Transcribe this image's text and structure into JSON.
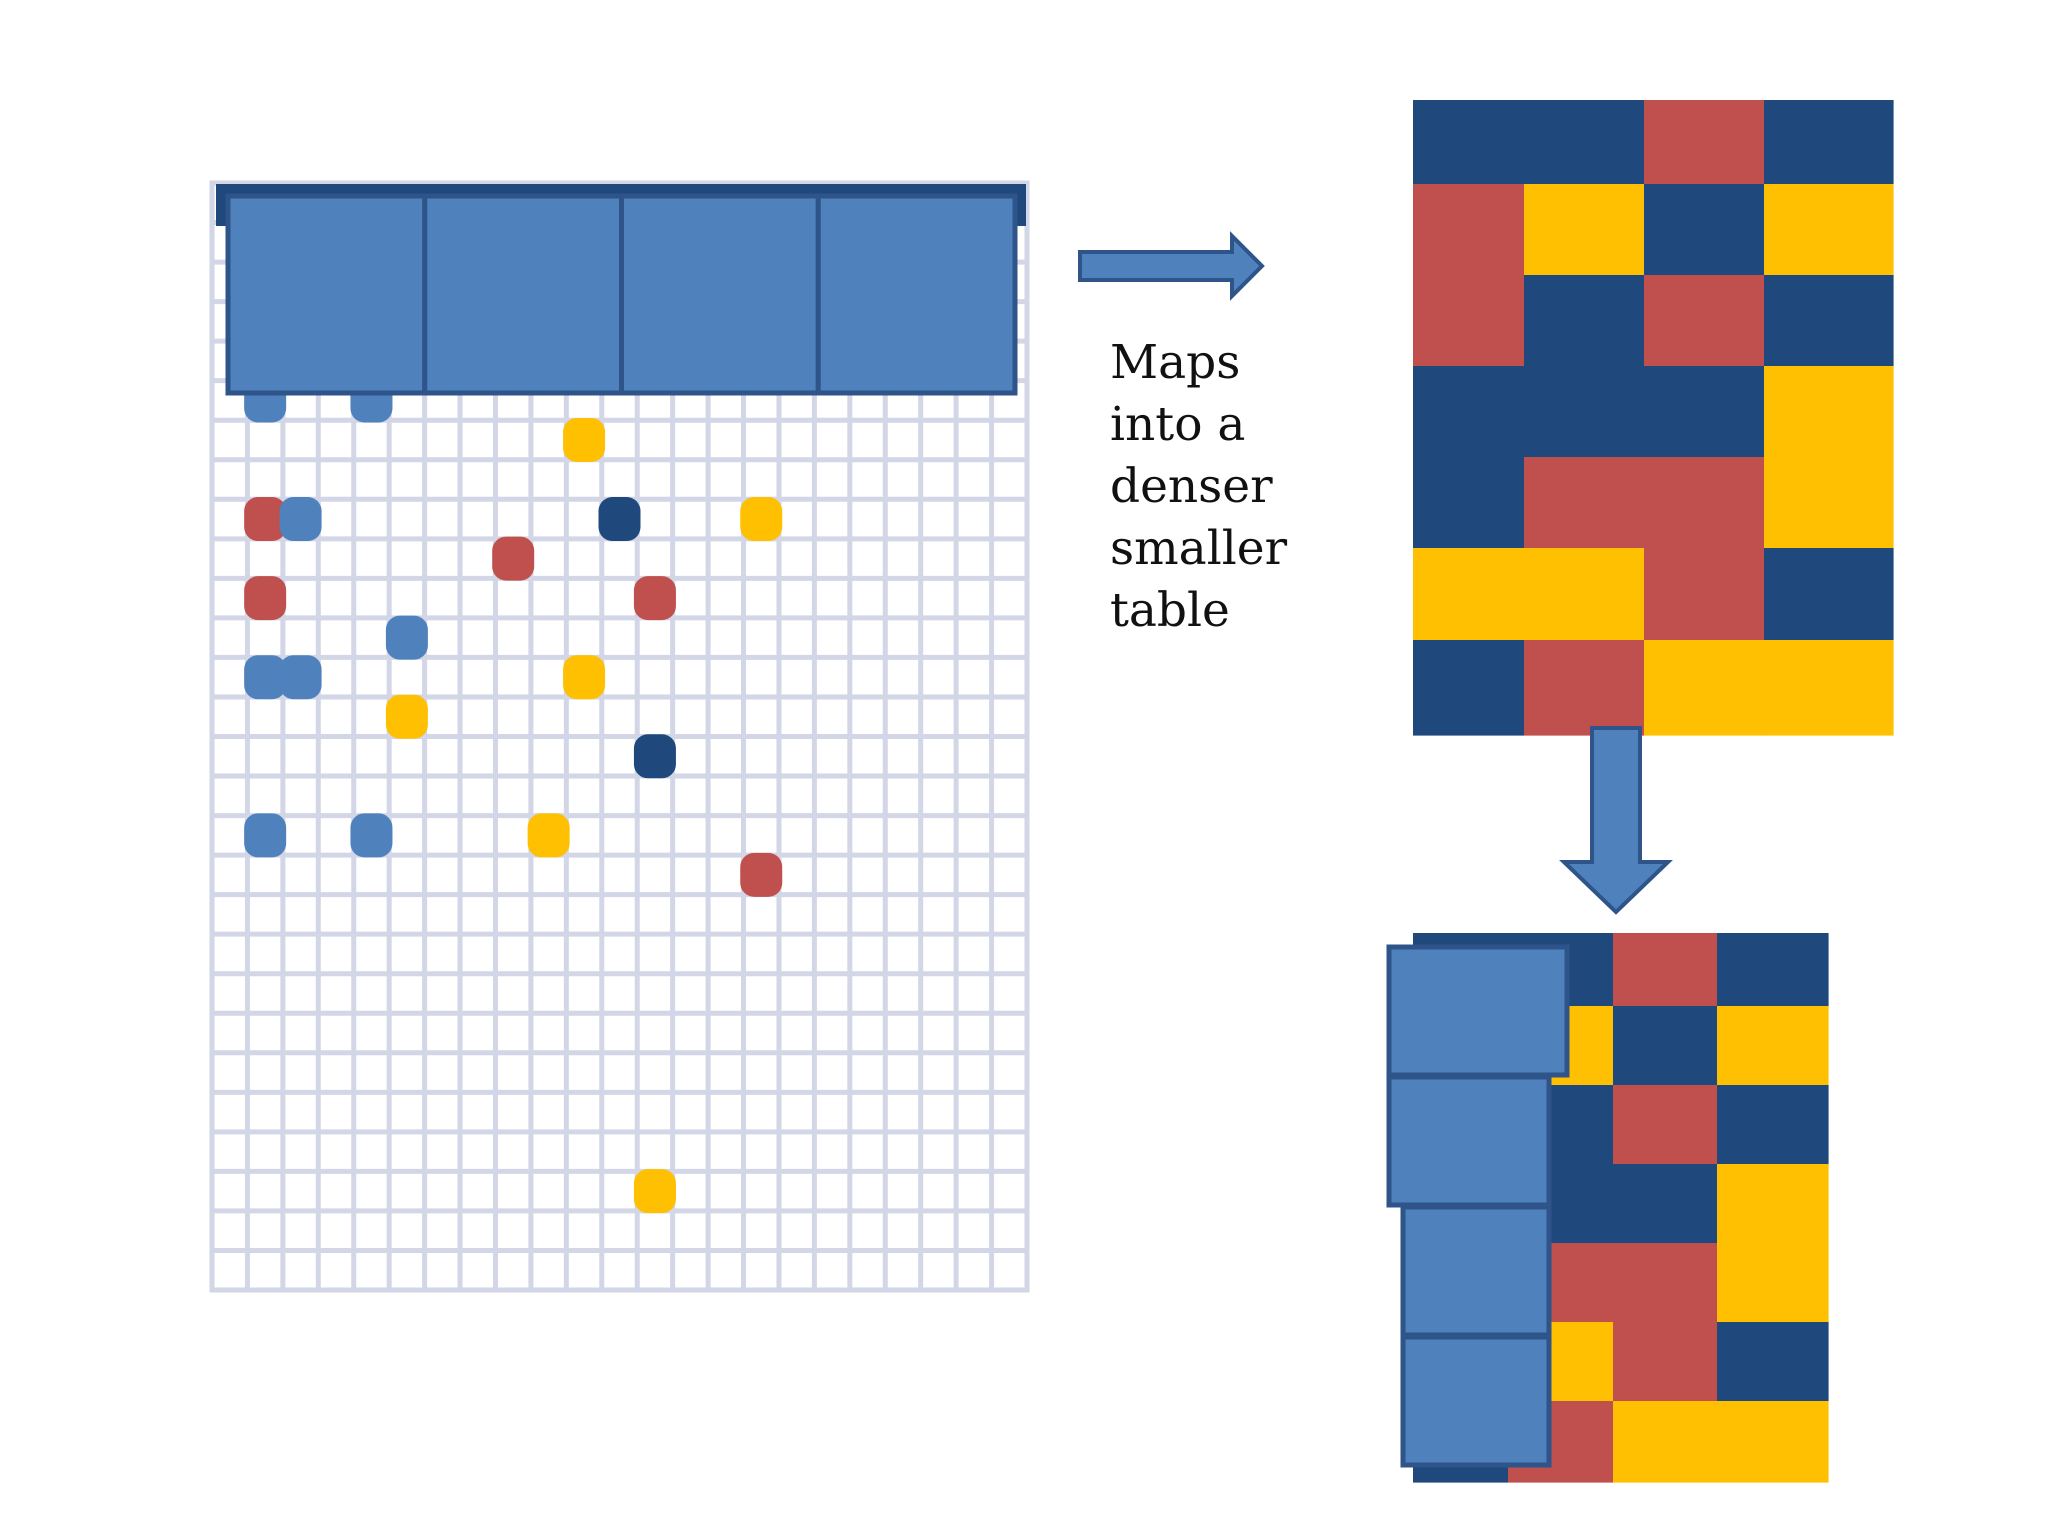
{
  "caption": [
    "Maps",
    "into a",
    "denser",
    "smaller",
    "table"
  ],
  "colors": {
    "grid_line": "#d2d6e6",
    "light_blue": "#4f81bd",
    "dark_blue": "#1f497d",
    "red": "#c0504d",
    "yellow": "#fec000",
    "block_border": "#2e548a"
  },
  "sparse_table": {
    "cols": 23,
    "rows": 28,
    "header_blocks": 4,
    "points": [
      {
        "col": 1,
        "row": 5,
        "color": "light_blue"
      },
      {
        "col": 4,
        "row": 5,
        "color": "light_blue"
      },
      {
        "col": 10,
        "row": 6,
        "color": "yellow"
      },
      {
        "col": 1,
        "row": 8,
        "color": "red"
      },
      {
        "col": 2,
        "row": 8,
        "color": "light_blue"
      },
      {
        "col": 11,
        "row": 8,
        "color": "dark_blue"
      },
      {
        "col": 15,
        "row": 8,
        "color": "yellow"
      },
      {
        "col": 8,
        "row": 9,
        "color": "red"
      },
      {
        "col": 1,
        "row": 10,
        "color": "red"
      },
      {
        "col": 12,
        "row": 10,
        "color": "red"
      },
      {
        "col": 5,
        "row": 11,
        "color": "light_blue"
      },
      {
        "col": 1,
        "row": 12,
        "color": "light_blue"
      },
      {
        "col": 2,
        "row": 12,
        "color": "light_blue"
      },
      {
        "col": 10,
        "row": 12,
        "color": "yellow"
      },
      {
        "col": 5,
        "row": 13,
        "color": "yellow"
      },
      {
        "col": 12,
        "row": 14,
        "color": "dark_blue"
      },
      {
        "col": 1,
        "row": 16,
        "color": "light_blue"
      },
      {
        "col": 4,
        "row": 16,
        "color": "light_blue"
      },
      {
        "col": 9,
        "row": 16,
        "color": "yellow"
      },
      {
        "col": 15,
        "row": 17,
        "color": "red"
      },
      {
        "col": 12,
        "row": 25,
        "color": "yellow"
      }
    ]
  },
  "dense_table": {
    "cols": 4,
    "cells": [
      [
        "dark_blue",
        "dark_blue",
        "red",
        "dark_blue"
      ],
      [
        "red",
        "yellow",
        "dark_blue",
        "yellow"
      ],
      [
        "red",
        "dark_blue",
        "red",
        "dark_blue"
      ],
      [
        "dark_blue",
        "dark_blue",
        "dark_blue",
        "yellow"
      ],
      [
        "dark_blue",
        "red",
        "red",
        "yellow"
      ],
      [
        "yellow",
        "yellow",
        "red",
        "dark_blue"
      ],
      [
        "dark_blue",
        "red",
        "yellow",
        "yellow"
      ]
    ]
  },
  "bottom_table": {
    "cols": 4,
    "side_blocks": 4,
    "cells": [
      [
        "dark_blue",
        "dark_blue",
        "red",
        "dark_blue"
      ],
      [
        "red",
        "yellow",
        "dark_blue",
        "yellow"
      ],
      [
        "red",
        "dark_blue",
        "red",
        "dark_blue"
      ],
      [
        "dark_blue",
        "dark_blue",
        "dark_blue",
        "yellow"
      ],
      [
        "dark_blue",
        "red",
        "red",
        "yellow"
      ],
      [
        "yellow",
        "yellow",
        "red",
        "dark_blue"
      ],
      [
        "dark_blue",
        "red",
        "yellow",
        "yellow"
      ]
    ]
  }
}
